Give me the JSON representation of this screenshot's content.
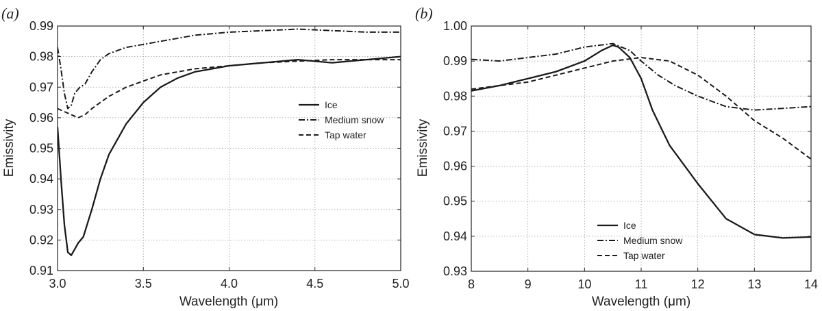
{
  "chart_data": [
    {
      "type": "line",
      "panel_label": "(a)",
      "xlabel": "Wavelength (μm)",
      "ylabel": "Emissivity",
      "xlim": [
        3.0,
        5.0
      ],
      "ylim": [
        0.91,
        0.99
      ],
      "xticks": [
        3.0,
        3.5,
        4.0,
        4.5,
        5.0
      ],
      "xtick_labels": [
        "3.0",
        "3.5",
        "4.0",
        "4.5",
        "5.0"
      ],
      "yticks": [
        0.91,
        0.92,
        0.93,
        0.94,
        0.95,
        0.96,
        0.97,
        0.98,
        0.99
      ],
      "ytick_labels": [
        "0.91",
        "0.92",
        "0.93",
        "0.94",
        "0.95",
        "0.96",
        "0.97",
        "0.98",
        "0.99"
      ],
      "grid": true,
      "legend_position": "right-middle",
      "series": [
        {
          "name": "Ice",
          "style": "solid",
          "x": [
            3.0,
            3.02,
            3.04,
            3.06,
            3.08,
            3.1,
            3.12,
            3.15,
            3.2,
            3.25,
            3.3,
            3.4,
            3.5,
            3.6,
            3.7,
            3.8,
            3.9,
            4.0,
            4.2,
            4.4,
            4.6,
            4.8,
            5.0
          ],
          "y": [
            0.957,
            0.94,
            0.925,
            0.916,
            0.915,
            0.917,
            0.919,
            0.921,
            0.93,
            0.94,
            0.948,
            0.958,
            0.965,
            0.97,
            0.973,
            0.975,
            0.976,
            0.977,
            0.978,
            0.979,
            0.978,
            0.979,
            0.98
          ]
        },
        {
          "name": "Medium snow",
          "style": "dashdot",
          "x": [
            3.0,
            3.02,
            3.04,
            3.06,
            3.08,
            3.1,
            3.13,
            3.16,
            3.2,
            3.25,
            3.3,
            3.4,
            3.5,
            3.6,
            3.7,
            3.8,
            3.9,
            4.0,
            4.2,
            4.4,
            4.6,
            4.8,
            5.0
          ],
          "y": [
            0.983,
            0.976,
            0.968,
            0.963,
            0.964,
            0.968,
            0.97,
            0.971,
            0.975,
            0.979,
            0.981,
            0.983,
            0.984,
            0.985,
            0.986,
            0.987,
            0.9875,
            0.988,
            0.9885,
            0.989,
            0.9885,
            0.988,
            0.988
          ]
        },
        {
          "name": "Tap water",
          "style": "dashed",
          "x": [
            3.0,
            3.04,
            3.08,
            3.12,
            3.16,
            3.2,
            3.3,
            3.4,
            3.5,
            3.6,
            3.7,
            3.8,
            3.9,
            4.0,
            4.2,
            4.4,
            4.6,
            4.8,
            5.0
          ],
          "y": [
            0.963,
            0.962,
            0.961,
            0.96,
            0.961,
            0.963,
            0.967,
            0.97,
            0.972,
            0.974,
            0.975,
            0.976,
            0.9765,
            0.977,
            0.978,
            0.9785,
            0.979,
            0.979,
            0.979
          ]
        }
      ]
    },
    {
      "type": "line",
      "panel_label": "(b)",
      "xlabel": "Wavelength (μm)",
      "ylabel": "Emissivity",
      "xlim": [
        8,
        14
      ],
      "ylim": [
        0.93,
        1.0
      ],
      "xticks": [
        8,
        9,
        10,
        11,
        12,
        13,
        14
      ],
      "xtick_labels": [
        "8",
        "9",
        "10",
        "11",
        "12",
        "13",
        "14"
      ],
      "yticks": [
        0.93,
        0.94,
        0.95,
        0.96,
        0.97,
        0.98,
        0.99,
        1.0
      ],
      "ytick_labels": [
        "0.93",
        "0.94",
        "0.95",
        "0.96",
        "0.97",
        "0.98",
        "0.99",
        "1.00"
      ],
      "grid": true,
      "legend_position": "bottom-center",
      "series": [
        {
          "name": "Ice",
          "style": "solid",
          "x": [
            8.0,
            8.5,
            9.0,
            9.5,
            10.0,
            10.3,
            10.5,
            10.6,
            10.8,
            11.0,
            11.2,
            11.5,
            12.0,
            12.5,
            13.0,
            13.5,
            14.0
          ],
          "y": [
            0.9815,
            0.983,
            0.985,
            0.987,
            0.99,
            0.993,
            0.9945,
            0.994,
            0.991,
            0.985,
            0.976,
            0.966,
            0.955,
            0.945,
            0.9405,
            0.9395,
            0.9398
          ]
        },
        {
          "name": "Medium snow",
          "style": "dashdot",
          "x": [
            8.0,
            8.5,
            9.0,
            9.5,
            10.0,
            10.5,
            10.8,
            11.0,
            11.3,
            11.6,
            12.0,
            12.5,
            13.0,
            13.5,
            14.0
          ],
          "y": [
            0.9905,
            0.99,
            0.991,
            0.992,
            0.994,
            0.995,
            0.993,
            0.99,
            0.986,
            0.983,
            0.98,
            0.977,
            0.976,
            0.9765,
            0.977
          ]
        },
        {
          "name": "Tap water",
          "style": "dashed",
          "x": [
            8.0,
            8.5,
            9.0,
            9.5,
            10.0,
            10.5,
            11.0,
            11.5,
            12.0,
            12.5,
            13.0,
            13.5,
            14.0
          ],
          "y": [
            0.982,
            0.983,
            0.984,
            0.986,
            0.988,
            0.99,
            0.991,
            0.99,
            0.986,
            0.98,
            0.973,
            0.968,
            0.962
          ]
        }
      ]
    }
  ]
}
